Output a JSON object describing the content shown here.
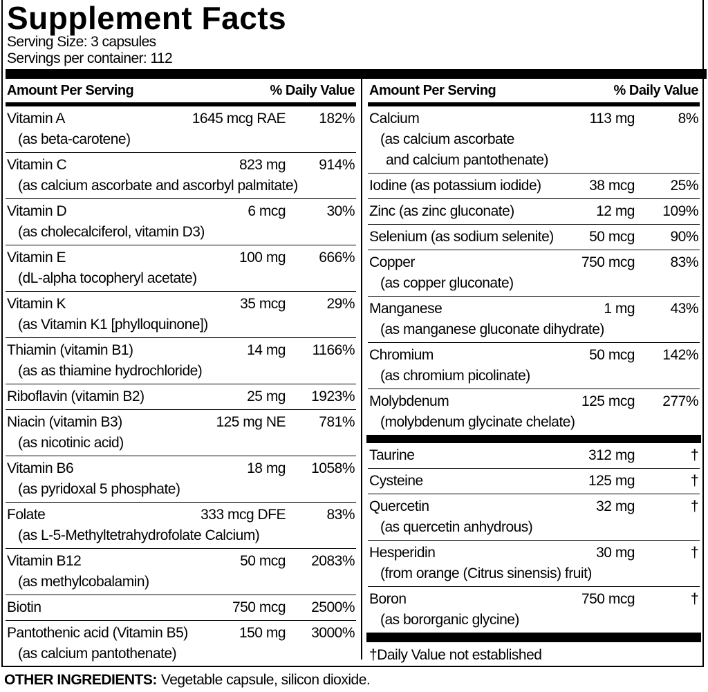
{
  "header": {
    "title": "Supplement Facts",
    "serving_size": "Serving Size: 3 capsules",
    "servings_per_container": "Servings per container: 112"
  },
  "left": {
    "column_header": {
      "amount": "Amount Per Serving",
      "daily_value": "% Daily Value"
    },
    "rows": [
      {
        "name": "Vitamin A",
        "amount": "1645 mcg RAE",
        "daily_value": "182%",
        "sub": [
          "(as beta-carotene)"
        ]
      },
      {
        "name": "Vitamin C",
        "amount": "823 mg",
        "daily_value": "914%",
        "sub": [
          "(as calcium ascorbate and ascorbyl palmitate)"
        ]
      },
      {
        "name": "Vitamin D",
        "amount": "6 mcg",
        "daily_value": "30%",
        "sub": [
          "(as cholecalciferol, vitamin D3)"
        ]
      },
      {
        "name": "Vitamin E",
        "amount": "100 mg",
        "daily_value": "666%",
        "sub": [
          "(dL-alpha tocopheryl acetate)"
        ]
      },
      {
        "name": "Vitamin K",
        "amount": "35 mcg",
        "daily_value": "29%",
        "sub": [
          "(as Vitamin K1 [phylloquinone])"
        ]
      },
      {
        "name": "Thiamin (vitamin B1)",
        "amount": "14 mg",
        "daily_value": "1166%",
        "sub": [
          "(as as thiamine hydrochloride)"
        ]
      },
      {
        "name": "Riboflavin (vitamin B2)",
        "amount": "25 mg",
        "daily_value": "1923%"
      },
      {
        "name": "Niacin (vitamin B3)",
        "amount": "125 mg NE",
        "daily_value": "781%",
        "sub": [
          "(as nicotinic acid)"
        ]
      },
      {
        "name": "Vitamin B6",
        "amount": "18 mg",
        "daily_value": "1058%",
        "sub": [
          "(as pyridoxal 5 phosphate)"
        ]
      },
      {
        "name": "Folate",
        "amount": "333 mcg DFE",
        "daily_value": "83%",
        "sub": [
          "(as L-5-Methyltetrahydrofolate Calcium)"
        ]
      },
      {
        "name": "Vitamin B12",
        "amount": "50 mcg",
        "daily_value": "2083%",
        "sub": [
          "(as methylcobalamin)"
        ]
      },
      {
        "name": "Biotin",
        "amount": "750 mcg",
        "daily_value": "2500%"
      },
      {
        "name": "Pantothenic acid (Vitamin B5)",
        "amount": "150 mg",
        "daily_value": "3000%",
        "sub": [
          "(as calcium pantothenate)"
        ]
      }
    ]
  },
  "right": {
    "column_header": {
      "amount": "Amount Per Serving",
      "daily_value": "% Daily Value"
    },
    "rows": [
      {
        "name": "Calcium",
        "amount": "113 mg",
        "daily_value": "8%",
        "sub": [
          "(as calcium ascorbate",
          "and calcium pantothenate)"
        ]
      },
      {
        "name": "Iodine (as potassium iodide)",
        "amount": "38 mcg",
        "daily_value": "25%"
      },
      {
        "name": "Zinc (as zinc gluconate)",
        "amount": "12 mg",
        "daily_value": "109%"
      },
      {
        "name": "Selenium (as sodium selenite)",
        "amount": "50 mcg",
        "daily_value": "90%"
      },
      {
        "name": "Copper",
        "amount": "750 mcg",
        "daily_value": "83%",
        "sub": [
          "(as copper gluconate)"
        ]
      },
      {
        "name": "Manganese",
        "amount": "1 mg",
        "daily_value": "43%",
        "sub": [
          "(as manganese gluconate dihydrate)"
        ]
      },
      {
        "name": "Chromium",
        "amount": "50 mcg",
        "daily_value": "142%",
        "sub": [
          "(as chromium picolinate)"
        ]
      },
      {
        "name": "Molybdenum",
        "amount": "125 mcg",
        "daily_value": "277%",
        "sub": [
          "(molybdenum glycinate chelate)"
        ]
      }
    ],
    "other_rows": [
      {
        "name": "Taurine",
        "amount": "312 mg",
        "daily_value": "†"
      },
      {
        "name": "Cysteine",
        "amount": "125 mg",
        "daily_value": "†"
      },
      {
        "name": "Quercetin",
        "amount": "32 mg",
        "daily_value": "†",
        "sub": [
          "(as quercetin anhydrous)"
        ]
      },
      {
        "name": "Hesperidin",
        "amount": "30 mg",
        "daily_value": "†",
        "sub": [
          "(from orange (Citrus sinensis) fruit)"
        ]
      },
      {
        "name": "Boron",
        "amount": "750 mcg",
        "daily_value": "†",
        "sub": [
          "(as bororganic glycine)"
        ]
      }
    ],
    "footnote": "†Daily Value not established"
  },
  "other_ingredients": {
    "label": "OTHER INGREDIENTS:",
    "text": "Vegetable capsule, silicon dioxide."
  }
}
